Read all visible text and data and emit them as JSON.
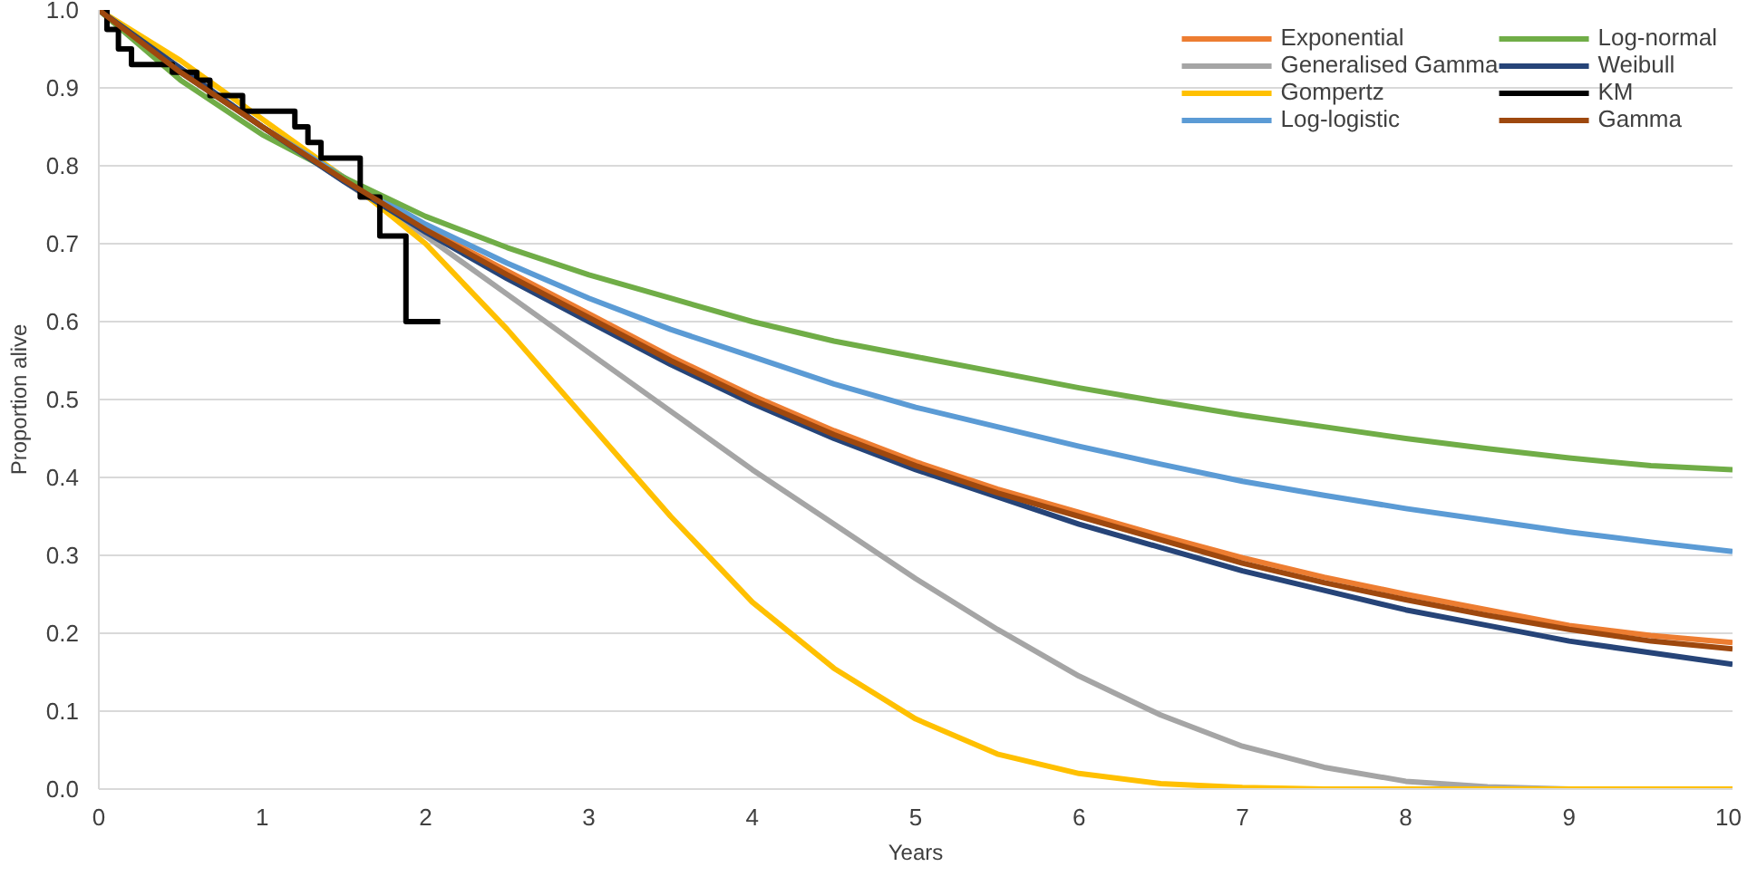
{
  "chart_data": {
    "type": "line",
    "xlabel": "Years",
    "ylabel": "Proportion alive",
    "x": [
      0,
      0.5,
      1,
      1.5,
      2,
      2.5,
      3,
      3.5,
      4,
      4.5,
      5,
      5.5,
      6,
      6.5,
      7,
      7.5,
      8,
      8.5,
      9,
      9.5,
      10
    ],
    "xlim": [
      0,
      10
    ],
    "xticks": [
      0,
      1,
      2,
      3,
      4,
      5,
      6,
      7,
      8,
      9,
      10
    ],
    "ylim": [
      0,
      1
    ],
    "yticks": [
      {
        "value": 0,
        "label": "0.0"
      },
      {
        "value": 0.1,
        "label": "0.1"
      },
      {
        "value": 0.2,
        "label": "0.2"
      },
      {
        "value": 0.3,
        "label": "0.3"
      },
      {
        "value": 0.4,
        "label": "0.4"
      },
      {
        "value": 0.5,
        "label": "0.5"
      },
      {
        "value": 0.6,
        "label": "0.6"
      },
      {
        "value": 0.7,
        "label": "0.7"
      },
      {
        "value": 0.8,
        "label": "0.8"
      },
      {
        "value": 0.9,
        "label": "0.9"
      },
      {
        "value": 1,
        "label": "1.0"
      }
    ],
    "grid": "y",
    "legend": "top right",
    "series": [
      {
        "name": "Exponential",
        "color": "#ed7d31",
        "values": [
          1,
          0.92,
          0.85,
          0.785,
          0.72,
          0.665,
          0.61,
          0.555,
          0.505,
          0.46,
          0.42,
          0.385,
          0.355,
          0.325,
          0.297,
          0.272,
          0.25,
          0.23,
          0.21,
          0.197,
          0.188
        ]
      },
      {
        "name": "Generalised Gamma",
        "color": "#a5a5a5",
        "values": [
          1,
          0.925,
          0.85,
          0.78,
          0.71,
          0.635,
          0.56,
          0.485,
          0.41,
          0.34,
          0.27,
          0.205,
          0.145,
          0.095,
          0.055,
          0.028,
          0.01,
          0.003,
          0,
          0,
          0
        ]
      },
      {
        "name": "Gompertz",
        "color": "#ffc000",
        "values": [
          1,
          0.935,
          0.86,
          0.785,
          0.7,
          0.59,
          0.47,
          0.35,
          0.24,
          0.155,
          0.09,
          0.045,
          0.02,
          0.007,
          0.002,
          0,
          0,
          0,
          0,
          0,
          0
        ]
      },
      {
        "name": "Log-logistic",
        "color": "#5b9bd5",
        "values": [
          1,
          0.92,
          0.85,
          0.785,
          0.725,
          0.675,
          0.63,
          0.59,
          0.555,
          0.52,
          0.49,
          0.465,
          0.44,
          0.417,
          0.395,
          0.377,
          0.36,
          0.345,
          0.33,
          0.317,
          0.305
        ]
      },
      {
        "name": "Log-normal",
        "color": "#70ad47",
        "values": [
          1,
          0.91,
          0.84,
          0.785,
          0.735,
          0.695,
          0.66,
          0.63,
          0.6,
          0.575,
          0.555,
          0.535,
          0.515,
          0.497,
          0.48,
          0.465,
          0.45,
          0.437,
          0.425,
          0.415,
          0.41
        ]
      },
      {
        "name": "Weibull",
        "color": "#264478",
        "values": [
          1,
          0.925,
          0.85,
          0.78,
          0.715,
          0.655,
          0.6,
          0.545,
          0.495,
          0.45,
          0.41,
          0.375,
          0.34,
          0.31,
          0.28,
          0.255,
          0.23,
          0.21,
          0.19,
          0.175,
          0.16
        ]
      },
      {
        "name": "KM",
        "color": "#000000",
        "type": "step",
        "x": [
          0,
          0.05,
          0.12,
          0.2,
          0.45,
          0.6,
          0.68,
          0.88,
          1.2,
          1.28,
          1.36,
          1.6,
          1.72,
          1.88,
          2.09
        ],
        "values": [
          1,
          0.975,
          0.95,
          0.93,
          0.92,
          0.91,
          0.89,
          0.87,
          0.85,
          0.83,
          0.81,
          0.76,
          0.71,
          0.6,
          0.6
        ]
      },
      {
        "name": "Gamma",
        "color": "#9e480e",
        "values": [
          1,
          0.92,
          0.85,
          0.782,
          0.718,
          0.66,
          0.605,
          0.55,
          0.5,
          0.455,
          0.415,
          0.38,
          0.35,
          0.32,
          0.29,
          0.265,
          0.243,
          0.223,
          0.205,
          0.19,
          0.18
        ]
      }
    ]
  }
}
